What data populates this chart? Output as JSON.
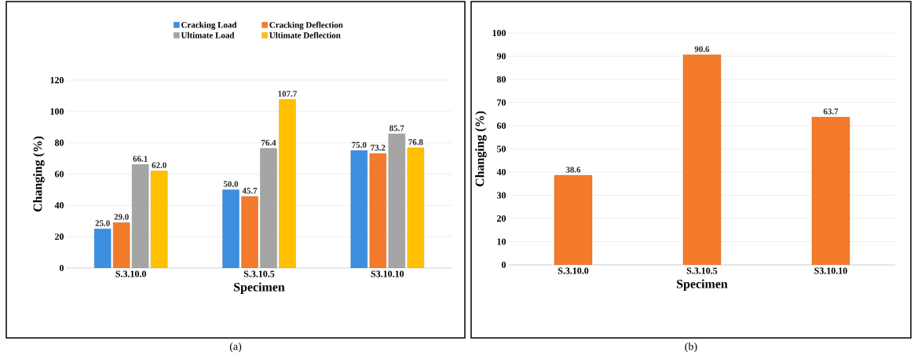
{
  "chart_data": [
    {
      "type": "bar",
      "categories": [
        "S.3.10.0",
        "S.3.10.5",
        "S3.10.10"
      ],
      "xlabel": "Specimen",
      "ylabel": "Changing (%)",
      "series": [
        {
          "name": "Cracking Load",
          "color": "#3c8ee0",
          "values": [
            25.0,
            50.0,
            75.0
          ],
          "value_labels": [
            "25.0",
            "50.0",
            "75.0"
          ]
        },
        {
          "name": "Cracking Deflection",
          "color": "#f47a2c",
          "values": [
            29.0,
            45.7,
            73.2
          ],
          "value_labels": [
            "29.0",
            "45.7",
            "73.2"
          ]
        },
        {
          "name": "Ultimate Load",
          "color": "#a5a5a5",
          "values": [
            66.1,
            76.4,
            85.7
          ],
          "value_labels": [
            "66.1",
            "76.4",
            "85.7"
          ]
        },
        {
          "name": "Ultimate Deflection",
          "color": "#ffc000",
          "values": [
            62.0,
            107.7,
            76.8
          ],
          "value_labels": [
            "62.0",
            "107.7",
            "76.8"
          ]
        }
      ],
      "ylim": [
        0,
        120
      ],
      "yticks": [
        0,
        20,
        40,
        60,
        80,
        100,
        120
      ],
      "grid": "y",
      "legend": "top",
      "annotations": [
        "(a)"
      ]
    },
    {
      "type": "bar",
      "categories": [
        "S.3.10.0",
        "S.3.10.5",
        "S3.10.10"
      ],
      "xlabel": "Specimen",
      "ylabel": "Changing (%)",
      "values": [
        38.6,
        90.6,
        63.7
      ],
      "value_labels": [
        "38.6",
        "90.6",
        "63.7"
      ],
      "color": "#f47a2c",
      "ylim": [
        0,
        100
      ],
      "yticks": [
        0,
        10,
        20,
        30,
        40,
        50,
        60,
        70,
        80,
        90,
        100
      ],
      "grid": "y",
      "annotations": [
        "(b)"
      ]
    }
  ]
}
